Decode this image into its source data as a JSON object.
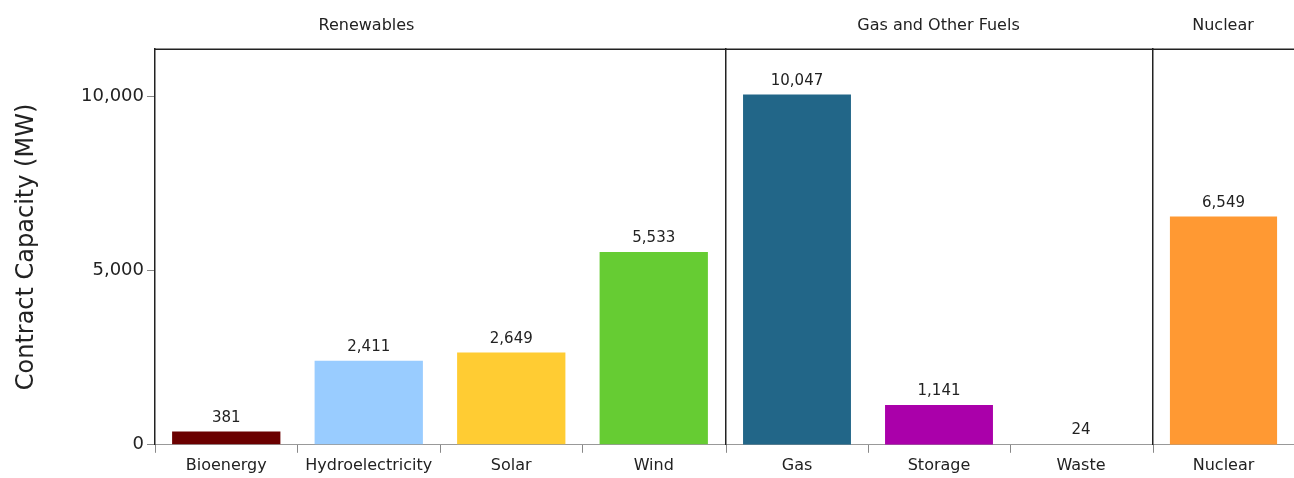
{
  "chart_data": [
    {
      "type": "bar",
      "title": "Renewables",
      "ylabel": "Contract Capacity (MW)",
      "categories": [
        "Bioenergy",
        "Hydroelectricity",
        "Solar",
        "Wind"
      ],
      "values": [
        381,
        2411,
        2649,
        5533
      ],
      "colors": [
        "#6b0000",
        "#99ccff",
        "#ffcc33",
        "#66cc33"
      ],
      "value_labels": [
        "381",
        "2,411",
        "2,649",
        "5,533"
      ],
      "ylim": [
        0,
        11350
      ],
      "yticks": [
        0,
        {
          "value": 5000,
          "label": "5,000"
        },
        {
          "value": 10000,
          "label": "10,000"
        }
      ],
      "grid": false,
      "legend": false
    },
    {
      "type": "bar",
      "title": "Gas and Other Fuels",
      "categories": [
        "Gas",
        "Storage",
        "Waste"
      ],
      "values": [
        10047,
        1141,
        24
      ],
      "colors": [
        "#226688",
        "#aa00aa",
        "#999999"
      ],
      "value_labels": [
        "10,047",
        "1,141",
        "24"
      ],
      "ylim": [
        0,
        11350
      ],
      "tick_labels": "x",
      "grid": false,
      "legend": false
    },
    {
      "type": "bar",
      "title": "Nuclear",
      "categories": [
        "Nuclear"
      ],
      "values": [
        6549
      ],
      "colors": [
        "#ff9933"
      ],
      "value_labels": [
        "6,549"
      ],
      "ylim": [
        0,
        11350
      ],
      "tick_labels": "x",
      "grid": false,
      "legend": false
    }
  ]
}
